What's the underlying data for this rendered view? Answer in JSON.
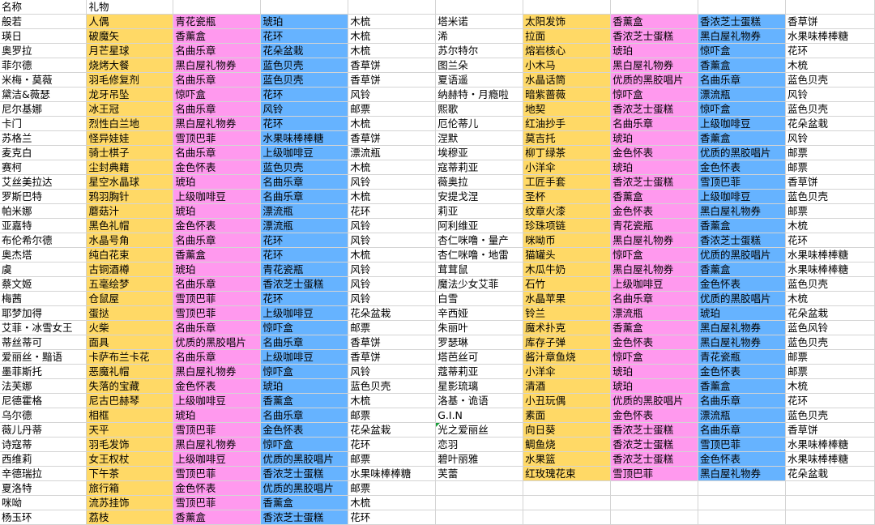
{
  "sheet": {
    "header": [
      "名称",
      "礼物"
    ],
    "colors": {
      "gift1": "#ffd966",
      "gift2": "#ff99ee",
      "gift3": "#66b3ff"
    },
    "rows": [
      [
        [
          "般若",
          "人偶",
          "青花瓷瓶",
          "琥珀",
          "木梳"
        ],
        [
          "塔米诺",
          "太阳发饰",
          "香薰盒",
          "香浓芝士蛋糕",
          "香草饼"
        ]
      ],
      [
        [
          "瑛日",
          "破魔矢",
          "香薰盒",
          "花环",
          "木梳"
        ],
        [
          "浠",
          "拉面",
          "香浓芝士蛋糕",
          "黑白屋礼物券",
          "水果味棒棒糖"
        ]
      ],
      [
        [
          "奥罗拉",
          "月芒星球",
          "名曲乐章",
          "花朵盆栽",
          "木梳"
        ],
        [
          "苏尔特尔",
          "熔岩核心",
          "琥珀",
          "惊吓盒",
          "花环"
        ]
      ],
      [
        [
          "菲尔德",
          "烧烤大餐",
          "黑白屋礼物券",
          "蓝色贝壳",
          "香草饼"
        ],
        [
          "图兰朵",
          "小木马",
          "黑白屋礼物券",
          "香薰盒",
          "木梳"
        ]
      ],
      [
        [
          "米梅・莫薇",
          "羽毛修复剂",
          "名曲乐章",
          "蓝色贝壳",
          "香草饼"
        ],
        [
          "夏语遥",
          "水晶话筒",
          "优质的黑胶唱片",
          "名曲乐章",
          "蓝色贝壳"
        ]
      ],
      [
        [
          "黛洁&薇瑟",
          "龙牙吊坠",
          "惊吓盒",
          "花环",
          "风铃"
        ],
        [
          "纳赫特・月瘾啦",
          "暗紫蔷薇",
          "惊吓盒",
          "漂流瓶",
          "风铃"
        ]
      ],
      [
        [
          "尼尔基娜",
          "冰王冠",
          "名曲乐章",
          "风铃",
          "邮票"
        ],
        [
          "熙歌",
          "地契",
          "香浓芝士蛋糕",
          "惊吓盒",
          "蓝色贝壳"
        ]
      ],
      [
        [
          "卡门",
          "烈性白兰地",
          "黑白屋礼物券",
          "花环",
          "木梳"
        ],
        [
          "厄伦蒂儿",
          "红油抄手",
          "名曲乐章",
          "上级咖啡豆",
          "花朵盆栽"
        ]
      ],
      [
        [
          "苏格兰",
          "怪异娃娃",
          "雪顶巴菲",
          "水果味棒棒糖",
          "香草饼"
        ],
        [
          "涅默",
          "莫吉托",
          "琥珀",
          "香薰盒",
          "风铃"
        ]
      ],
      [
        [
          "麦克白",
          "骑士棋子",
          "名曲乐章",
          "上级咖啡豆",
          "漂流瓶"
        ],
        [
          "埃穆亚",
          "柳丁绿茶",
          "金色怀表",
          "优质的黑胶唱片",
          "邮票"
        ]
      ],
      [
        [
          "赛柯",
          "尘封典籍",
          "金色怀表",
          "蓝色贝壳",
          "木梳"
        ],
        [
          "寇蒂莉亚",
          "小洋伞",
          "琥珀",
          "金色怀表",
          "邮票"
        ]
      ],
      [
        [
          "艾丝美拉达",
          "星空水晶球",
          "琥珀",
          "名曲乐章",
          "风铃"
        ],
        [
          "薇奥拉",
          "工匠手套",
          "香浓芝士蛋糕",
          "雪顶巴菲",
          "香草饼"
        ]
      ],
      [
        [
          "罗斯巴特",
          "鸦羽胸针",
          "上级咖啡豆",
          "名曲乐章",
          "木梳"
        ],
        [
          "安提戈涅",
          "圣杯",
          "香薰盒",
          "上级咖啡豆",
          "蓝色贝壳"
        ]
      ],
      [
        [
          "帕米娜",
          "蘑菇汁",
          "琥珀",
          "漂流瓶",
          "花环"
        ],
        [
          "莉亚",
          "纹章火漆",
          "金色怀表",
          "黑白屋礼物券",
          "邮票"
        ]
      ],
      [
        [
          "亚嘉特",
          "黑色礼帽",
          "金色怀表",
          "漂流瓶",
          "风铃"
        ],
        [
          "阿利维亚",
          "珍珠项链",
          "青花瓷瓶",
          "香薰盒",
          "木梳"
        ]
      ],
      [
        [
          "布伦希尔德",
          "水晶号角",
          "名曲乐章",
          "花环",
          "风铃"
        ],
        [
          "杏仁咪噜・量产",
          "咪呦币",
          "黑白屋礼物券",
          "香浓芝士蛋糕",
          "花环"
        ]
      ],
      [
        [
          "奥杰塔",
          "纯白花束",
          "香薰盒",
          "花环",
          "木梳"
        ],
        [
          "杏仁咪噜・地雷",
          "猫罐头",
          "惊吓盒",
          "优质的黑胶唱片",
          "水果味棒棒糖"
        ]
      ],
      [
        [
          "虞",
          "古铜酒樽",
          "琥珀",
          "青花瓷瓶",
          "风铃"
        ],
        [
          "茸茸鼠",
          "木瓜牛奶",
          "黑白屋礼物券",
          "香薰盒",
          "水果味棒棒糖"
        ]
      ],
      [
        [
          "蔡文姬",
          "五毫绘梦",
          "名曲乐章",
          "香浓芝士蛋糕",
          "风铃"
        ],
        [
          "魔法少女艾菲",
          "石竹",
          "上级咖啡豆",
          "金色怀表",
          "蓝色贝壳"
        ]
      ],
      [
        [
          "梅茜",
          "仓鼠屋",
          "雪顶巴菲",
          "花环",
          "风铃"
        ],
        [
          "白雪",
          "水晶苹果",
          "名曲乐章",
          "优质的黑胶唱片",
          "木梳"
        ]
      ],
      [
        [
          "耶梦加得",
          "蛋挞",
          "雪顶巴菲",
          "上级咖啡豆",
          "花朵盆栽"
        ],
        [
          "辛西娅",
          "铃兰",
          "漂流瓶",
          "琥珀",
          "花朵盆栽"
        ]
      ],
      [
        [
          "艾菲・冰雪女王",
          "火柴",
          "名曲乐章",
          "惊吓盒",
          "邮票"
        ],
        [
          "朱丽叶",
          "魔术扑克",
          "香薰盒",
          "黑白屋礼物券",
          "蓝色风铃"
        ]
      ],
      [
        [
          "蒂丝蒂可",
          "面具",
          "优质的黑胶唱片",
          "名曲乐章",
          "香草饼"
        ],
        [
          "罗瑟琳",
          "库存子弹",
          "金色怀表",
          "黑白屋礼物券",
          "蓝色贝壳"
        ]
      ],
      [
        [
          "爱丽丝・黯语",
          "卡萨布兰卡花",
          "名曲乐章",
          "上级咖啡豆",
          "香草饼"
        ],
        [
          "塔芭丝可",
          "酱汁章鱼烧",
          "惊吓盒",
          "青花瓷瓶",
          "邮票"
        ]
      ],
      [
        [
          "墨菲斯托",
          "恶魔礼帽",
          "黑白屋礼物券",
          "惊吓盒",
          "风铃"
        ],
        [
          "蔻蒂莉亚",
          "小洋伞",
          "琥珀",
          "金色怀表",
          "邮票"
        ]
      ],
      [
        [
          "法芙娜",
          "失落的宝藏",
          "金色怀表",
          "琥珀",
          "蓝色贝壳"
        ],
        [
          "星影琉璃",
          "清酒",
          "琥珀",
          "香薰盒",
          "木梳"
        ]
      ],
      [
        [
          "尼德霍格",
          "尼古巴赫琴",
          "上级咖啡豆",
          "香薰盒",
          "木梳"
        ],
        [
          "洛基・诡语",
          "小丑玩偶",
          "优质的黑胶唱片",
          "名曲乐章",
          "花环"
        ]
      ],
      [
        [
          "乌尔德",
          "相框",
          "琥珀",
          "名曲乐章",
          "邮票"
        ],
        [
          "G.I.N",
          "素面",
          "金色怀表",
          "漂流瓶",
          "蓝色贝壳"
        ]
      ],
      [
        [
          "薇儿丹蒂",
          "天平",
          "雪顶巴菲",
          "金色怀表",
          "花朵盆栽"
        ],
        [
          "光之爱丽丝",
          "向日葵",
          "香浓芝士蛋糕",
          "名曲乐章",
          "香草饼"
        ]
      ],
      [
        [
          "诗寇蒂",
          "羽毛发饰",
          "黑白屋礼物券",
          "惊吓盒",
          "花环"
        ],
        [
          "恋羽",
          "鲷鱼烧",
          "香浓芝士蛋糕",
          "雪顶巴菲",
          "水果味棒棒糖"
        ]
      ],
      [
        [
          "西维莉",
          "女王权杖",
          "上级咖啡豆",
          "优质的黑胶唱片",
          "邮票"
        ],
        [
          "碧叶丽雅",
          "水果篮",
          "香浓芝士蛋糕",
          "金色怀表",
          "水果味棒棒糖"
        ]
      ],
      [
        [
          "辛德瑞拉",
          "下午茶",
          "雪顶巴菲",
          "香浓芝士蛋糕",
          "水果味棒棒糖"
        ],
        [
          "芙蕾",
          "红玫瑰花束",
          "雪顶巴菲",
          "黑白屋礼物券",
          "花朵盆栽"
        ]
      ],
      [
        [
          "夏洛特",
          "旅行箱",
          "金色怀表",
          "优质的黑胶唱片",
          "邮票"
        ],
        null
      ],
      [
        [
          "咪呦",
          "流苏挂饰",
          "雪顶巴菲",
          "香薰盒",
          "木梳"
        ],
        null
      ],
      [
        [
          "杨玉环",
          "荔枝",
          "香薰盒",
          "香浓芝士蛋糕",
          "花环"
        ],
        null
      ]
    ]
  }
}
